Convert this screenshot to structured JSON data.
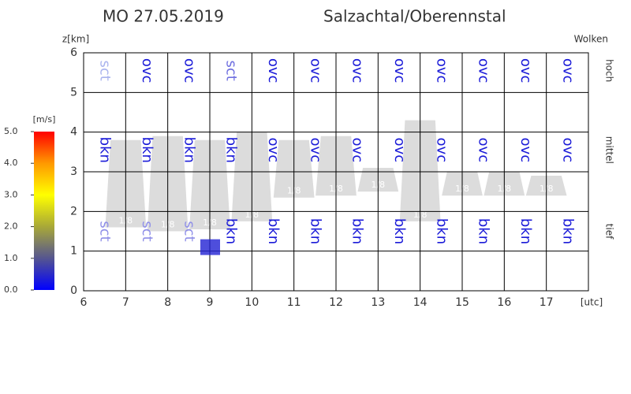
{
  "chart_data": {
    "type": "meteogram",
    "title": "MO 27.05.2019",
    "subtitle": "Salzachtal/Oberennstal",
    "y_label": "z[km]",
    "x_label": "[utc]",
    "right_label": "Wolken",
    "xlim": [
      6,
      18
    ],
    "ylim": [
      0,
      6
    ],
    "xticks": [
      6,
      7,
      8,
      9,
      10,
      11,
      12,
      13,
      14,
      15,
      16,
      17
    ],
    "yticks": [
      0,
      1,
      2,
      3,
      4,
      5,
      6
    ],
    "grid": true,
    "cloud_rows": [
      {
        "name": "hoch",
        "labels": [
          "sct",
          "ovc",
          "ovc",
          "sct",
          "ovc",
          "ovc",
          "ovc",
          "ovc",
          "ovc",
          "ovc",
          "ovc",
          "ovc"
        ],
        "colors": [
          "#aab4ee",
          "#1a1ad8",
          "#1a1ad8",
          "#6f6fe0",
          "#1a1ad8",
          "#1a1ad8",
          "#1a1ad8",
          "#1a1ad8",
          "#1a1ad8",
          "#1a1ad8",
          "#1a1ad8",
          "#1a1ad8"
        ]
      },
      {
        "name": "mittel",
        "labels": [
          "bkn",
          "bkn",
          "bkn",
          "bkn",
          "ovc",
          "ovc",
          "ovc",
          "ovc",
          "ovc",
          "ovc",
          "ovc",
          "ovc"
        ],
        "colors": [
          "#1a1ad8",
          "#1a1ad8",
          "#1a1ad8",
          "#1a1ad8",
          "#1a1ad8",
          "#1a1ad8",
          "#1a1ad8",
          "#1a1ad8",
          "#1a1ad8",
          "#1a1ad8",
          "#1a1ad8",
          "#1a1ad8"
        ]
      },
      {
        "name": "tief",
        "labels": [
          "sct",
          "sct",
          "sct",
          "bkn",
          "bkn",
          "bkn",
          "bkn",
          "bkn",
          "bkn",
          "bkn",
          "bkn",
          "bkn"
        ],
        "colors": [
          "#8f8fe8",
          "#8f8fe8",
          "#8f8fe8",
          "#1a1ad8",
          "#1a1ad8",
          "#1a1ad8",
          "#1a1ad8",
          "#1a1ad8",
          "#1a1ad8",
          "#1a1ad8",
          "#1a1ad8",
          "#1a1ad8"
        ]
      }
    ],
    "cloud_layers": {
      "color": "#dcdcdc",
      "x": [
        7,
        8,
        9,
        10,
        11,
        12,
        13,
        14,
        15,
        16,
        17
      ],
      "top": [
        3.8,
        3.9,
        3.8,
        4.0,
        3.8,
        3.9,
        3.1,
        4.3,
        3.0,
        3.0,
        2.9
      ],
      "base": [
        1.6,
        1.5,
        1.55,
        1.75,
        2.35,
        2.4,
        2.5,
        1.75,
        2.4,
        2.4,
        2.4
      ],
      "labels": [
        "1/8",
        "1/8",
        "1/8",
        "1/8",
        "1/8",
        "1/8",
        "1/8",
        "1/8",
        "1/8",
        "1/8",
        "1/8"
      ]
    },
    "wind": {
      "x": [
        9
      ],
      "z": [
        1.1
      ],
      "values": [
        0.4
      ]
    },
    "colorbar": {
      "label": "[m/s]",
      "lim": [
        0,
        5
      ],
      "ticks": [
        {
          "value": 0,
          "label": "0.0"
        },
        {
          "value": 1,
          "label": "1.0"
        },
        {
          "value": 2,
          "label": "2.0"
        },
        {
          "value": 3,
          "label": "3.0"
        },
        {
          "value": 4,
          "label": "4.0"
        },
        {
          "value": 5,
          "label": "5.0"
        }
      ],
      "colors": [
        "#0000ff",
        "#555590",
        "#a8a838",
        "#ffff00",
        "#ff9900",
        "#ff0000"
      ]
    }
  }
}
